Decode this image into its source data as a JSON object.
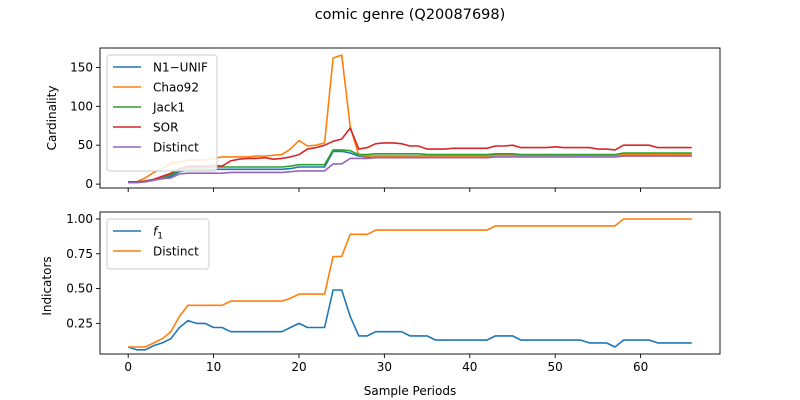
{
  "figure": {
    "title": "comic genre (Q20087698)"
  },
  "chart_data": [
    {
      "type": "line",
      "ylabel": "Cardinality",
      "xlabel": "",
      "xlim": [
        -3.3,
        69.3
      ],
      "ylim": [
        -5,
        175
      ],
      "xticks": [
        0,
        10,
        20,
        30,
        40,
        50,
        60
      ],
      "yticks": [
        0,
        50,
        100,
        150
      ],
      "legend": "top-left",
      "x": [
        0,
        1,
        2,
        3,
        4,
        5,
        6,
        7,
        8,
        9,
        10,
        11,
        12,
        13,
        14,
        15,
        16,
        17,
        18,
        19,
        20,
        21,
        22,
        23,
        24,
        25,
        26,
        27,
        28,
        29,
        30,
        31,
        32,
        33,
        34,
        35,
        36,
        37,
        38,
        39,
        40,
        41,
        42,
        43,
        44,
        45,
        46,
        47,
        48,
        49,
        50,
        51,
        52,
        53,
        54,
        55,
        56,
        57,
        58,
        59,
        60,
        61,
        62,
        63,
        64,
        65,
        66
      ],
      "series": [
        {
          "name": "N1−UNIF",
          "color": "#1f77b4",
          "values": [
            2,
            2,
            3,
            5,
            7,
            10,
            16,
            18,
            18,
            18,
            19,
            19,
            19,
            19,
            19,
            19,
            19,
            19,
            19,
            20,
            22,
            22,
            22,
            22,
            42,
            42,
            40,
            36,
            35,
            36,
            36,
            36,
            36,
            36,
            36,
            36,
            36,
            36,
            36,
            36,
            36,
            36,
            36,
            37,
            37,
            37,
            37,
            37,
            37,
            37,
            37,
            37,
            37,
            37,
            37,
            37,
            37,
            37,
            38,
            38,
            38,
            38,
            38,
            38,
            38,
            38,
            38
          ]
        },
        {
          "name": "Chao92",
          "color": "#ff7f0e",
          "values": [
            3,
            3,
            8,
            15,
            20,
            27,
            28,
            31,
            31,
            31,
            33,
            35,
            35,
            35,
            35,
            36,
            36,
            37,
            38,
            45,
            56,
            49,
            50,
            53,
            162,
            166,
            74,
            37,
            36,
            36,
            36,
            36,
            36,
            36,
            36,
            36,
            36,
            36,
            36,
            36,
            36,
            36,
            36,
            37,
            37,
            37,
            37,
            37,
            37,
            37,
            37,
            37,
            37,
            37,
            37,
            37,
            37,
            37,
            38,
            38,
            38,
            38,
            38,
            38,
            38,
            38,
            38
          ]
        },
        {
          "name": "Jack1",
          "color": "#2ca02c",
          "values": [
            3,
            3,
            4,
            6,
            9,
            12,
            18,
            21,
            21,
            21,
            22,
            22,
            22,
            22,
            22,
            22,
            22,
            22,
            22,
            23,
            25,
            25,
            25,
            25,
            44,
            44,
            43,
            38,
            38,
            39,
            39,
            39,
            39,
            39,
            39,
            38,
            38,
            38,
            38,
            38,
            38,
            38,
            38,
            39,
            39,
            39,
            38,
            38,
            38,
            38,
            38,
            38,
            38,
            38,
            38,
            38,
            38,
            38,
            40,
            40,
            40,
            40,
            40,
            40,
            40,
            40,
            40
          ]
        },
        {
          "name": "SOR",
          "color": "#d62728",
          "values": [
            3,
            3,
            4,
            6,
            10,
            14,
            20,
            23,
            23,
            23,
            24,
            23,
            30,
            32,
            33,
            33,
            34,
            32,
            33,
            35,
            38,
            45,
            47,
            50,
            55,
            58,
            72,
            45,
            47,
            52,
            53,
            53,
            52,
            49,
            49,
            45,
            45,
            45,
            46,
            46,
            46,
            46,
            46,
            49,
            49,
            50,
            47,
            47,
            47,
            47,
            48,
            47,
            47,
            47,
            47,
            45,
            45,
            44,
            50,
            50,
            50,
            50,
            47,
            47,
            47,
            47,
            47
          ]
        },
        {
          "name": "Distinct",
          "color": "#9467bd",
          "values": [
            2,
            2,
            3,
            5,
            7,
            8,
            13,
            14,
            14,
            14,
            14,
            14,
            15,
            15,
            15,
            15,
            15,
            15,
            15,
            16,
            17,
            17,
            17,
            17,
            26,
            26,
            33,
            33,
            33,
            34,
            34,
            34,
            34,
            34,
            34,
            34,
            34,
            34,
            34,
            34,
            34,
            34,
            34,
            35,
            35,
            35,
            35,
            35,
            35,
            35,
            35,
            35,
            35,
            35,
            35,
            35,
            35,
            35,
            36,
            36,
            36,
            36,
            36,
            36,
            36,
            36,
            36
          ]
        }
      ]
    },
    {
      "type": "line",
      "ylabel": "Indicators",
      "xlabel": "Sample Periods",
      "xlim": [
        -3.3,
        69.3
      ],
      "ylim": [
        0.03,
        1.05
      ],
      "xticks": [
        0,
        10,
        20,
        30,
        40,
        50,
        60
      ],
      "yticks": [
        0.25,
        0.5,
        0.75,
        1.0
      ],
      "ytick_labels": [
        "0.25",
        "0.50",
        "0.75",
        "1.00"
      ],
      "xtick_labels": [
        "0",
        "10",
        "20",
        "30",
        "40",
        "50",
        "60"
      ],
      "legend": "top-left",
      "x": [
        0,
        1,
        2,
        3,
        4,
        5,
        6,
        7,
        8,
        9,
        10,
        11,
        12,
        13,
        14,
        15,
        16,
        17,
        18,
        19,
        20,
        21,
        22,
        23,
        24,
        25,
        26,
        27,
        28,
        29,
        30,
        31,
        32,
        33,
        34,
        35,
        36,
        37,
        38,
        39,
        40,
        41,
        42,
        43,
        44,
        45,
        46,
        47,
        48,
        49,
        50,
        51,
        52,
        53,
        54,
        55,
        56,
        57,
        58,
        59,
        60,
        61,
        62,
        63,
        64,
        65,
        66
      ],
      "series": [
        {
          "name": "f",
          "name_sub": "1",
          "color": "#1f77b4",
          "values": [
            0.08,
            0.06,
            0.06,
            0.09,
            0.11,
            0.14,
            0.22,
            0.27,
            0.25,
            0.25,
            0.22,
            0.22,
            0.19,
            0.19,
            0.19,
            0.19,
            0.19,
            0.19,
            0.19,
            0.22,
            0.25,
            0.22,
            0.22,
            0.22,
            0.49,
            0.49,
            0.3,
            0.16,
            0.16,
            0.19,
            0.19,
            0.19,
            0.19,
            0.16,
            0.16,
            0.16,
            0.13,
            0.13,
            0.13,
            0.13,
            0.13,
            0.13,
            0.13,
            0.16,
            0.16,
            0.16,
            0.13,
            0.13,
            0.13,
            0.13,
            0.13,
            0.13,
            0.13,
            0.13,
            0.11,
            0.11,
            0.11,
            0.08,
            0.13,
            0.13,
            0.13,
            0.13,
            0.11,
            0.11,
            0.11,
            0.11,
            0.11
          ]
        },
        {
          "name": "Distinct",
          "name_sub": "",
          "color": "#ff7f0e",
          "values": [
            0.08,
            0.08,
            0.08,
            0.11,
            0.14,
            0.19,
            0.3,
            0.38,
            0.38,
            0.38,
            0.38,
            0.38,
            0.41,
            0.41,
            0.41,
            0.41,
            0.41,
            0.41,
            0.41,
            0.43,
            0.46,
            0.46,
            0.46,
            0.46,
            0.73,
            0.73,
            0.89,
            0.89,
            0.89,
            0.92,
            0.92,
            0.92,
            0.92,
            0.92,
            0.92,
            0.92,
            0.92,
            0.92,
            0.92,
            0.92,
            0.92,
            0.92,
            0.92,
            0.95,
            0.95,
            0.95,
            0.95,
            0.95,
            0.95,
            0.95,
            0.95,
            0.95,
            0.95,
            0.95,
            0.95,
            0.95,
            0.95,
            0.95,
            1.0,
            1.0,
            1.0,
            1.0,
            1.0,
            1.0,
            1.0,
            1.0,
            1.0
          ]
        }
      ]
    }
  ]
}
